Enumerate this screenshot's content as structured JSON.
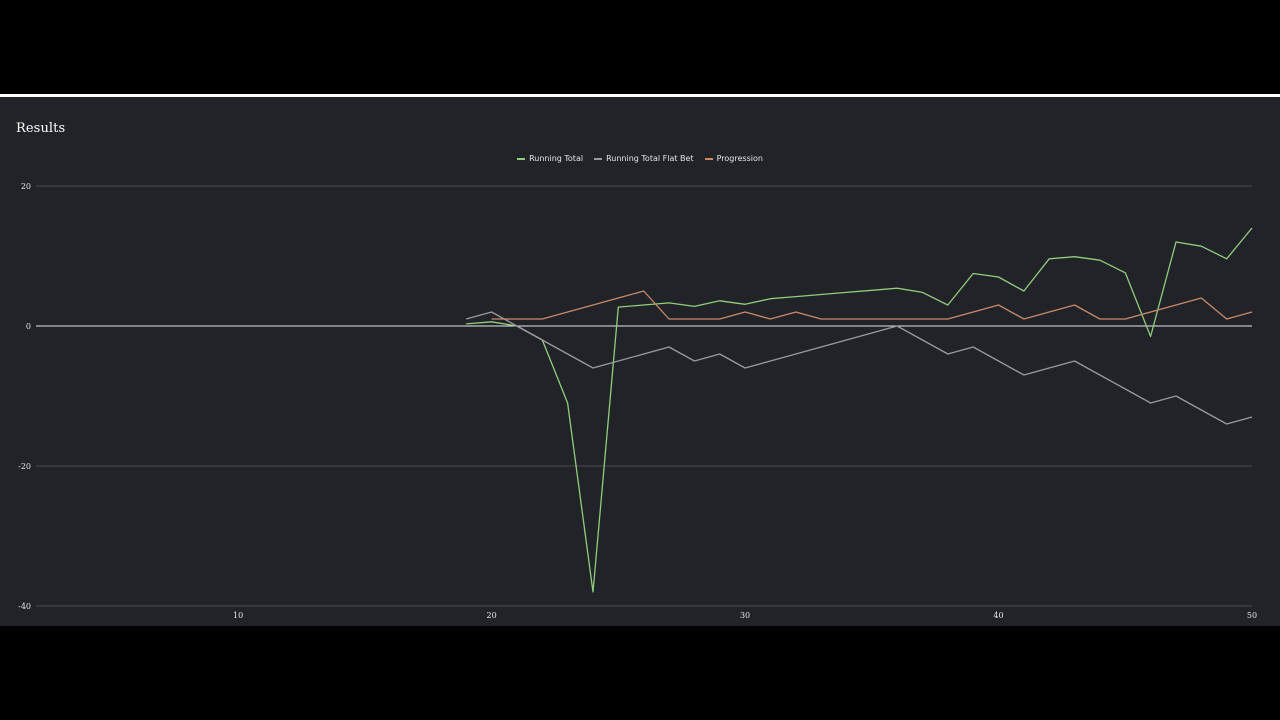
{
  "title": "Results",
  "chart_data": {
    "type": "line",
    "title": "Results",
    "xlabel": "",
    "ylabel": "",
    "xlim": [
      1,
      50
    ],
    "ylim": [
      -40,
      20
    ],
    "x_ticks": [
      10,
      20,
      30,
      40,
      50
    ],
    "y_ticks": [
      20,
      0,
      -20,
      -40
    ],
    "grid": true,
    "legend_position": "top-center",
    "series": [
      {
        "name": "Running Total",
        "color": "#8fce7d",
        "x": [
          19,
          20,
          21,
          22,
          23,
          24,
          25,
          26,
          27,
          28,
          29,
          30,
          31,
          32,
          33,
          34,
          35,
          36,
          37,
          38,
          39,
          40,
          41,
          42,
          43,
          44,
          45,
          46,
          47,
          48,
          49,
          50
        ],
        "y": [
          0.3,
          0.6,
          0,
          -2,
          -11,
          -38,
          2.7,
          3,
          3.3,
          2.8,
          3.6,
          3.1,
          3.9,
          4.2,
          4.5,
          4.8,
          5.1,
          5.4,
          4.8,
          3,
          7.5,
          7,
          5,
          9.6,
          9.9,
          9.4,
          7.6,
          -1.5,
          12,
          11.4,
          9.6,
          14
        ]
      },
      {
        "name": "Running Total Flat Bet",
        "color": "#9a9a9e",
        "x": [
          19,
          20,
          21,
          22,
          23,
          24,
          25,
          26,
          27,
          28,
          29,
          30,
          31,
          32,
          33,
          34,
          35,
          36,
          37,
          38,
          39,
          40,
          41,
          42,
          43,
          44,
          45,
          46,
          47,
          48,
          49,
          50
        ],
        "y": [
          1,
          2,
          0,
          -2,
          -4,
          -6,
          -5,
          -4,
          -3,
          -5,
          -4,
          -6,
          -5,
          -4,
          -3,
          -2,
          -1,
          0,
          -2,
          -4,
          -3,
          -5,
          -7,
          -6,
          -5,
          -7,
          -9,
          -11,
          -10,
          -12,
          -14,
          -13
        ]
      },
      {
        "name": "Progression",
        "color": "#c98a6a",
        "x": [
          20,
          21,
          22,
          23,
          24,
          25,
          26,
          27,
          28,
          29,
          30,
          31,
          32,
          33,
          34,
          35,
          36,
          37,
          38,
          39,
          40,
          41,
          42,
          43,
          44,
          45,
          46,
          47,
          48,
          49,
          50
        ],
        "y": [
          1,
          1,
          1,
          2,
          3,
          4,
          5,
          1,
          1,
          1,
          2,
          1,
          2,
          1,
          1,
          1,
          1,
          1,
          1,
          2,
          3,
          1,
          2,
          3,
          1,
          1,
          2,
          3,
          4,
          1,
          2
        ]
      }
    ]
  }
}
